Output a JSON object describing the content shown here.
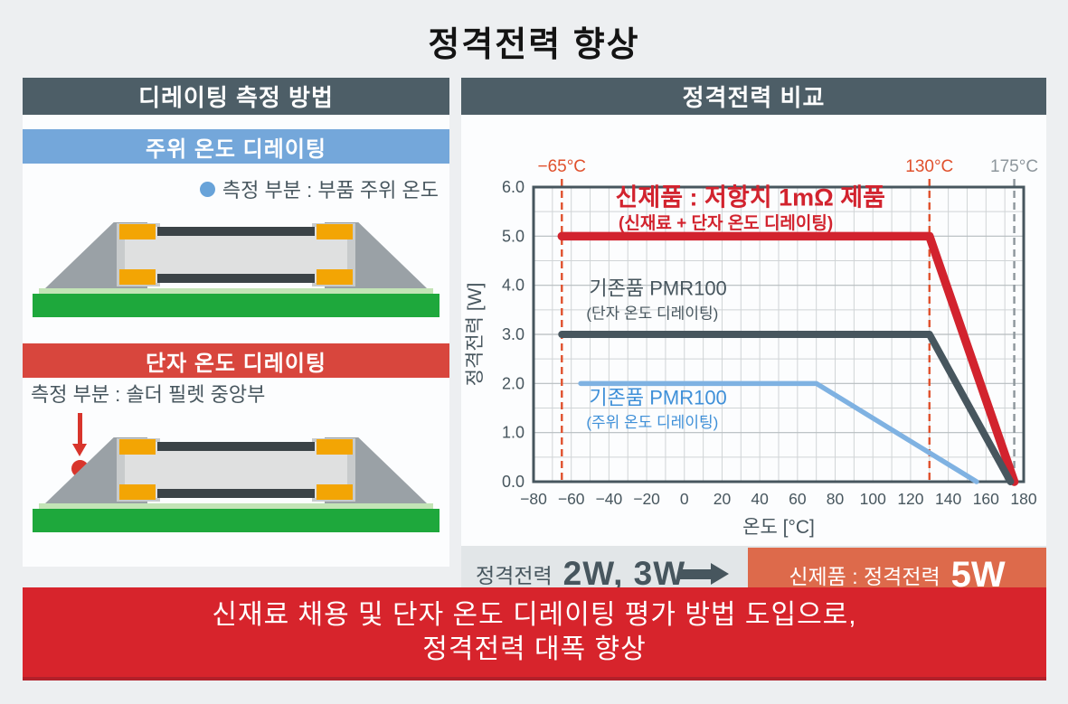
{
  "title": "정격전력 향상",
  "colors": {
    "slate_header": "#4d5e67",
    "blue_bar": "#74a7da",
    "red_bar": "#d8463d",
    "banner_red": "#d7242c",
    "orange_box": "#dd6a4b",
    "pcb_green": "#1ea83c",
    "solder_gray": "#9aa1a6",
    "plating_yellow": "#f3a504"
  },
  "left_panel": {
    "header": "디레이팅 측정 방법",
    "ambient": {
      "title": "주위 온도 디레이팅",
      "legend": "측정 부분 : 부품 주위 온도"
    },
    "terminal": {
      "title": "단자 온도 디레이팅",
      "legend": "측정 부분 : 솔더 필렛 중앙부"
    }
  },
  "right_panel": {
    "header": "정격전력 비교",
    "result": {
      "before_label": "정격전력",
      "before_values": "2W, 3W",
      "after_label": "신제품 : 정격전력",
      "after_value": "5W"
    }
  },
  "banner": {
    "line1": "신재료 채용 및 단자 온도 디레이팅 평가 방법 도입으로,",
    "line2": "정격전력 대폭 향상"
  },
  "chart_data": {
    "type": "line",
    "xlabel": "온도 [°C]",
    "ylabel": "정격전력 [W]",
    "xlim": [
      -80,
      180
    ],
    "ylim": [
      0,
      6
    ],
    "x_tick_step": 20,
    "y_tick_step": 1,
    "x_minor_step": 10,
    "y_minor_step": 0.5,
    "grid": true,
    "frame_color": "#47565e",
    "grid_color": "#d0d4d6",
    "grid_major_color": "#b6bcbf",
    "tick_color": "#47565e",
    "vlines": [
      {
        "x": -65,
        "label": "−65°C",
        "color": "#e0512d"
      },
      {
        "x": 130,
        "label": "130°C",
        "color": "#e0512d"
      },
      {
        "x": 175,
        "label": "175°C",
        "color": "#8d969c"
      }
    ],
    "series": [
      {
        "name": "신제품 : 저항치 1mΩ 제품",
        "subtitle": "(신재료  +  단자 온도 디레이팅)",
        "color": "#d2232e",
        "label_color": "#d2232e",
        "width": 9.5,
        "emphasis": true,
        "points": [
          [
            -65,
            5.0
          ],
          [
            130,
            5.0
          ],
          [
            175,
            0.0
          ]
        ],
        "label_xy": [
          35,
          5.62
        ],
        "sub_xy": [
          22,
          5.15
        ]
      },
      {
        "name": "기존품 PMR100",
        "subtitle": "(단자 온도 디레이팅)",
        "color": "#47565e",
        "label_color": "#47565e",
        "width": 8,
        "emphasis": false,
        "points": [
          [
            -65,
            3.0
          ],
          [
            130,
            3.0
          ],
          [
            173,
            0.0
          ]
        ],
        "label_xy": [
          -14,
          3.8
        ],
        "sub_xy": [
          -17,
          3.32
        ]
      },
      {
        "name": "기존품 PMR100",
        "subtitle": "(주위 온도 디레이팅)",
        "color": "#7fb2e2",
        "label_color": "#3f90d8",
        "width": 5.5,
        "emphasis": false,
        "points": [
          [
            -55,
            2.0
          ],
          [
            70,
            2.0
          ],
          [
            155,
            0.0
          ]
        ],
        "label_xy": [
          -14,
          1.57
        ],
        "sub_xy": [
          -17,
          1.1
        ]
      }
    ]
  }
}
